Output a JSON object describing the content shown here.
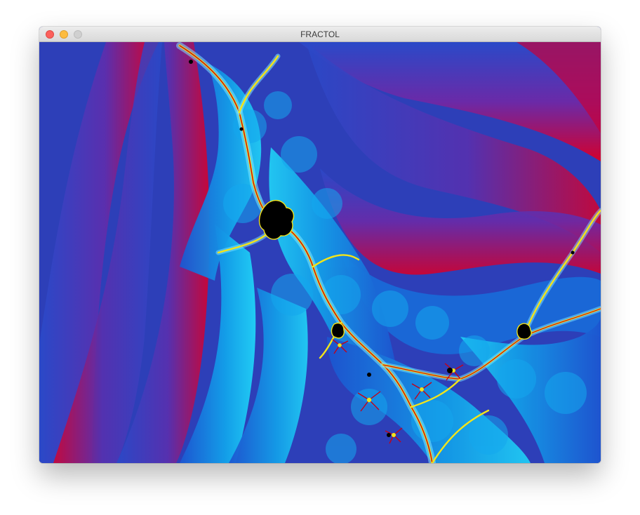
{
  "window": {
    "title": "FRACTOL",
    "buttons": {
      "close": "close",
      "minimize": "minimize",
      "zoom": "zoom"
    }
  },
  "colors": {
    "background_blue": "#2d3fb8",
    "mid_blue": "#1f6fd6",
    "cyan": "#12b8ee",
    "light_cyan": "#7fe6ff",
    "red": "#d8002a",
    "black": "#000000",
    "yellow": "#f2e41a"
  },
  "icons": {
    "close": "close-icon",
    "minimize": "minimize-icon",
    "zoom": "zoom-icon"
  }
}
